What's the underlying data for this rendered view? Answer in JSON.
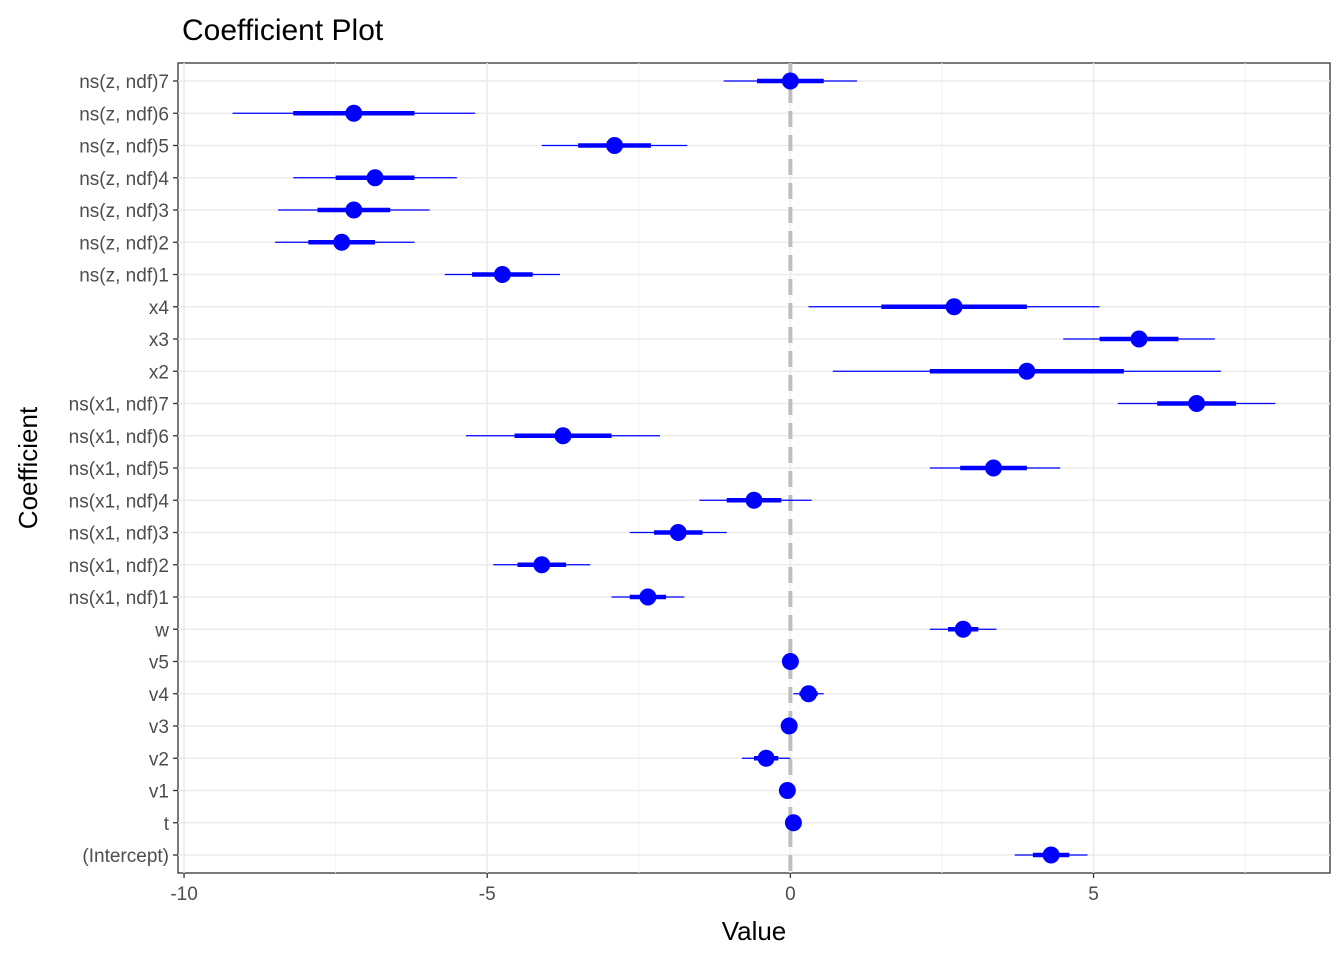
{
  "chart_data": {
    "type": "coefficient-plot",
    "title": "Coefficient Plot",
    "xlabel": "Value",
    "ylabel": "Coefficient",
    "xlim": [
      -10.1,
      8.9
    ],
    "xticks": [
      -10,
      -5,
      0,
      5
    ],
    "xtick_labels": [
      "-10",
      "-5",
      "0",
      "5"
    ],
    "reference_line": 0,
    "grid": true,
    "point_color": "#0000ff",
    "reference_line_color": "#bebebe",
    "coefficients": [
      {
        "name": "(Intercept)",
        "estimate": 4.3,
        "inner": [
          4.0,
          4.6
        ],
        "outer": [
          3.7,
          4.9
        ]
      },
      {
        "name": "t",
        "estimate": 0.05,
        "inner": [
          0.0,
          0.1
        ],
        "outer": [
          -0.05,
          0.15
        ]
      },
      {
        "name": "v1",
        "estimate": -0.05,
        "inner": [
          -0.08,
          -0.02
        ],
        "outer": [
          -0.1,
          0.0
        ]
      },
      {
        "name": "v2",
        "estimate": -0.4,
        "inner": [
          -0.6,
          -0.2
        ],
        "outer": [
          -0.8,
          0.0
        ]
      },
      {
        "name": "v3",
        "estimate": -0.02,
        "inner": [
          -0.05,
          0.01
        ],
        "outer": [
          -0.08,
          0.04
        ]
      },
      {
        "name": "v4",
        "estimate": 0.3,
        "inner": [
          0.15,
          0.45
        ],
        "outer": [
          0.05,
          0.55
        ]
      },
      {
        "name": "v5",
        "estimate": 0.0,
        "inner": [
          -0.03,
          0.03
        ],
        "outer": [
          -0.05,
          0.05
        ]
      },
      {
        "name": "w",
        "estimate": 2.85,
        "inner": [
          2.6,
          3.1
        ],
        "outer": [
          2.3,
          3.4
        ]
      },
      {
        "name": "ns(x1, ndf)1",
        "estimate": -2.35,
        "inner": [
          -2.65,
          -2.05
        ],
        "outer": [
          -2.95,
          -1.75
        ]
      },
      {
        "name": "ns(x1, ndf)2",
        "estimate": -4.1,
        "inner": [
          -4.5,
          -3.7
        ],
        "outer": [
          -4.9,
          -3.3
        ]
      },
      {
        "name": "ns(x1, ndf)3",
        "estimate": -1.85,
        "inner": [
          -2.25,
          -1.45
        ],
        "outer": [
          -2.65,
          -1.05
        ]
      },
      {
        "name": "ns(x1, ndf)4",
        "estimate": -0.6,
        "inner": [
          -1.05,
          -0.15
        ],
        "outer": [
          -1.5,
          0.35
        ]
      },
      {
        "name": "ns(x1, ndf)5",
        "estimate": 3.35,
        "inner": [
          2.8,
          3.9
        ],
        "outer": [
          2.3,
          4.45
        ]
      },
      {
        "name": "ns(x1, ndf)6",
        "estimate": -3.75,
        "inner": [
          -4.55,
          -2.95
        ],
        "outer": [
          -5.35,
          -2.15
        ]
      },
      {
        "name": "ns(x1, ndf)7",
        "estimate": 6.7,
        "inner": [
          6.05,
          7.35
        ],
        "outer": [
          5.4,
          8.0
        ]
      },
      {
        "name": "x2",
        "estimate": 3.9,
        "inner": [
          2.3,
          5.5
        ],
        "outer": [
          0.7,
          7.1
        ]
      },
      {
        "name": "x3",
        "estimate": 5.75,
        "inner": [
          5.1,
          6.4
        ],
        "outer": [
          4.5,
          7.0
        ]
      },
      {
        "name": "x4",
        "estimate": 2.7,
        "inner": [
          1.5,
          3.9
        ],
        "outer": [
          0.3,
          5.1
        ]
      },
      {
        "name": "ns(z, ndf)1",
        "estimate": -4.75,
        "inner": [
          -5.25,
          -4.25
        ],
        "outer": [
          -5.7,
          -3.8
        ]
      },
      {
        "name": "ns(z, ndf)2",
        "estimate": -7.4,
        "inner": [
          -7.95,
          -6.85
        ],
        "outer": [
          -8.5,
          -6.2
        ]
      },
      {
        "name": "ns(z, ndf)3",
        "estimate": -7.2,
        "inner": [
          -7.8,
          -6.6
        ],
        "outer": [
          -8.45,
          -5.95
        ]
      },
      {
        "name": "ns(z, ndf)4",
        "estimate": -6.85,
        "inner": [
          -7.5,
          -6.2
        ],
        "outer": [
          -8.2,
          -5.5
        ]
      },
      {
        "name": "ns(z, ndf)5",
        "estimate": -2.9,
        "inner": [
          -3.5,
          -2.3
        ],
        "outer": [
          -4.1,
          -1.7
        ]
      },
      {
        "name": "ns(z, ndf)6",
        "estimate": -7.2,
        "inner": [
          -8.2,
          -6.2
        ],
        "outer": [
          -9.2,
          -5.2
        ]
      },
      {
        "name": "ns(z, ndf)7",
        "estimate": 0.0,
        "inner": [
          -0.55,
          0.55
        ],
        "outer": [
          -1.1,
          1.1
        ]
      }
    ]
  }
}
